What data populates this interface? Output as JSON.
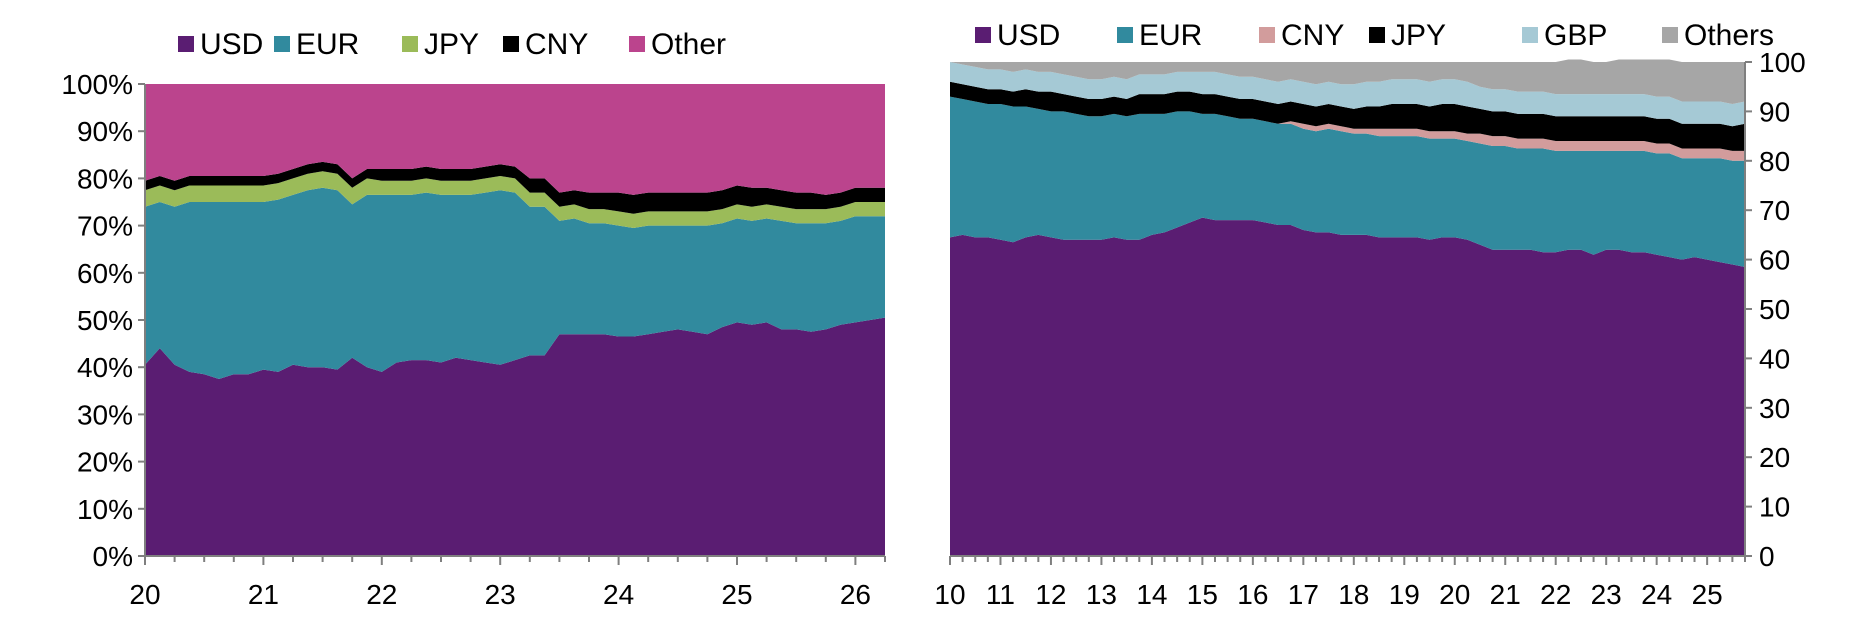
{
  "chart_data": [
    {
      "type": "area",
      "stacked": true,
      "x_ticks": [
        "20",
        "21",
        "22",
        "23",
        "24",
        "25",
        "26"
      ],
      "y_ticks": [
        "0%",
        "10%",
        "20%",
        "30%",
        "40%",
        "50%",
        "60%",
        "70%",
        "80%",
        "90%",
        "100%"
      ],
      "xlim": [
        20,
        26.25
      ],
      "ylim": [
        0,
        100
      ],
      "grid": false,
      "legend_position": "top",
      "y_axis_side": "left",
      "x": [
        20.0,
        20.125,
        20.25,
        20.375,
        20.5,
        20.625,
        20.75,
        20.875,
        21.0,
        21.125,
        21.25,
        21.375,
        21.5,
        21.625,
        21.75,
        21.875,
        22.0,
        22.125,
        22.25,
        22.375,
        22.5,
        22.625,
        22.75,
        22.875,
        23.0,
        23.125,
        23.25,
        23.375,
        23.5,
        23.625,
        23.75,
        23.875,
        24.0,
        24.125,
        24.25,
        24.375,
        24.5,
        24.625,
        24.75,
        24.875,
        25.0,
        25.125,
        25.25,
        25.375,
        25.5,
        25.625,
        25.75,
        25.875,
        26.0,
        26.125,
        26.25
      ],
      "series": [
        {
          "name": "USD",
          "color": "#5a1d72",
          "values": [
            40.5,
            44,
            40.5,
            39,
            38.5,
            37.5,
            38.5,
            38.5,
            39.5,
            39,
            40.5,
            40,
            40,
            39.5,
            42,
            40,
            39,
            41,
            41.5,
            41.5,
            41,
            42,
            41.5,
            41,
            40.5,
            41.5,
            42.5,
            42.5,
            47,
            47,
            47,
            47,
            46.5,
            46.5,
            47,
            47.5,
            48,
            47.5,
            47,
            48.5,
            49.5,
            49,
            49.5,
            48,
            48,
            47.5,
            48,
            49,
            49.5,
            50,
            50.5
          ]
        },
        {
          "name": "EUR",
          "color": "#318a9e",
          "values": [
            33.5,
            31,
            33.5,
            36,
            36.5,
            37.5,
            36.5,
            36.5,
            35.5,
            36.5,
            36,
            37.5,
            38,
            38,
            32.5,
            36.5,
            37.5,
            35.5,
            35,
            35.5,
            35.5,
            34.5,
            35,
            36,
            37,
            35.5,
            31.5,
            31.5,
            24,
            24.5,
            23.5,
            23.5,
            23.5,
            23,
            23,
            22.5,
            22,
            22.5,
            23,
            22,
            22,
            22,
            22,
            23,
            22.5,
            23,
            22.5,
            22,
            22.5,
            22,
            21.5
          ]
        },
        {
          "name": "JPY",
          "color": "#9bbb59",
          "values": [
            3.5,
            3.5,
            3.5,
            3.5,
            3.5,
            3.5,
            3.5,
            3.5,
            3.5,
            3.5,
            3.5,
            3.5,
            3.5,
            3.5,
            3.5,
            3.5,
            3,
            3,
            3,
            3,
            3,
            3,
            3,
            3,
            3,
            3,
            3,
            3,
            3,
            3,
            3,
            3,
            3,
            3,
            3,
            3,
            3,
            3,
            3,
            3,
            3,
            3,
            3,
            3,
            3,
            3,
            3,
            3,
            3,
            3,
            3
          ]
        },
        {
          "name": "CNY",
          "color": "#000000",
          "values": [
            2,
            2,
            2,
            2,
            2,
            2,
            2,
            2,
            2,
            2,
            2,
            2,
            2,
            2,
            2,
            2,
            2.5,
            2.5,
            2.5,
            2.5,
            2.5,
            2.5,
            2.5,
            2.5,
            2.5,
            2.5,
            3,
            3,
            3,
            3,
            3.5,
            3.5,
            4,
            4,
            4,
            4,
            4,
            4,
            4,
            4,
            4,
            4,
            3.5,
            3.5,
            3.5,
            3.5,
            3,
            3,
            3,
            3,
            3
          ]
        },
        {
          "name": "Other",
          "color": "#bb448d",
          "values": [
            20.5,
            19.5,
            20.5,
            19.5,
            19.5,
            19.5,
            19.5,
            19.5,
            19.5,
            19,
            18,
            17,
            16.5,
            17,
            20,
            18,
            18,
            18,
            18,
            17.5,
            18,
            18,
            18,
            17.5,
            17,
            17.5,
            20,
            20,
            23,
            22.5,
            23,
            23,
            23,
            23.5,
            23,
            23,
            23,
            23,
            23,
            22.5,
            21.5,
            22,
            22,
            22.5,
            23,
            23,
            23.5,
            23,
            22,
            22,
            22
          ]
        }
      ]
    },
    {
      "type": "area",
      "stacked": true,
      "x_ticks": [
        "10",
        "11",
        "12",
        "13",
        "14",
        "15",
        "16",
        "17",
        "18",
        "19",
        "20",
        "21",
        "22",
        "23",
        "24",
        "25"
      ],
      "y_ticks": [
        "0",
        "10",
        "20",
        "30",
        "40",
        "50",
        "60",
        "70",
        "80",
        "90",
        "100"
      ],
      "xlim": [
        10,
        25.75
      ],
      "ylim": [
        0,
        100
      ],
      "grid": false,
      "legend_position": "top",
      "y_axis_side": "right",
      "x": [
        10.0,
        10.25,
        10.5,
        10.75,
        11.0,
        11.25,
        11.5,
        11.75,
        12.0,
        12.25,
        12.5,
        12.75,
        13.0,
        13.25,
        13.5,
        13.75,
        14.0,
        14.25,
        14.5,
        14.75,
        15.0,
        15.25,
        15.5,
        15.75,
        16.0,
        16.25,
        16.5,
        16.75,
        17.0,
        17.25,
        17.5,
        17.75,
        18.0,
        18.25,
        18.5,
        18.75,
        19.0,
        19.25,
        19.5,
        19.75,
        20.0,
        20.25,
        20.5,
        20.75,
        21.0,
        21.25,
        21.5,
        21.75,
        22.0,
        22.25,
        22.5,
        22.75,
        23.0,
        23.25,
        23.5,
        23.75,
        24.0,
        24.25,
        24.5,
        24.75,
        25.0,
        25.25,
        25.5,
        25.75
      ],
      "series": [
        {
          "name": "USD",
          "color": "#5a1d72",
          "values": [
            64.5,
            65,
            64.5,
            64.5,
            64,
            63.5,
            64.5,
            65,
            64.5,
            64,
            64,
            64,
            64,
            64.5,
            64,
            64,
            65,
            65.5,
            66.5,
            67.5,
            68.5,
            68,
            68,
            68,
            68,
            67.5,
            67,
            67,
            66,
            65.5,
            65.5,
            65,
            65,
            65,
            64.5,
            64.5,
            64.5,
            64.5,
            64,
            64.5,
            64.5,
            64,
            63,
            62,
            62,
            62,
            62,
            61.5,
            61.5,
            62,
            62,
            61,
            62,
            62,
            61.5,
            61.5,
            61,
            60.5,
            60,
            60.5,
            60,
            59.5,
            59,
            58.5
          ]
        },
        {
          "name": "EUR",
          "color": "#318a9e",
          "values": [
            28.5,
            27.5,
            27.5,
            27,
            27.5,
            27.5,
            26.5,
            25.5,
            25.5,
            26,
            25.5,
            25,
            25,
            25,
            25,
            25.5,
            24.5,
            24,
            23.5,
            22.5,
            21,
            21.5,
            21,
            20.5,
            20.5,
            20.5,
            20.5,
            20.5,
            20.5,
            20.5,
            21,
            21,
            20.5,
            20.5,
            20.5,
            20.5,
            20.5,
            20.5,
            20.5,
            20,
            20,
            20,
            20.5,
            21,
            21,
            20.5,
            20.5,
            21,
            20.5,
            20,
            20,
            21,
            20,
            20,
            20.5,
            20.5,
            20.5,
            21,
            20.5,
            20,
            20.5,
            21,
            21,
            21.5
          ]
        },
        {
          "name": "CNY",
          "color": "#d29c9c",
          "values": [
            0,
            0,
            0,
            0,
            0,
            0,
            0,
            0,
            0,
            0,
            0,
            0,
            0,
            0,
            0,
            0,
            0,
            0,
            0,
            0,
            0,
            0,
            0,
            0,
            0,
            0,
            0,
            0.5,
            1.0,
            1.0,
            1.0,
            1.0,
            1.0,
            1.0,
            1.5,
            1.5,
            1.5,
            1.5,
            1.5,
            1.5,
            1.5,
            1.5,
            2.0,
            2.0,
            2.0,
            2.0,
            2.0,
            2.0,
            2.0,
            2.0,
            2.0,
            2.0,
            2.0,
            2.0,
            2.0,
            2.0,
            2.0,
            2.0,
            2.0,
            2.0,
            2.0,
            2.0,
            2.0,
            2.0
          ]
        },
        {
          "name": "JPY",
          "color": "#000000",
          "values": [
            3.0,
            3.0,
            3.0,
            3.0,
            3.0,
            3.0,
            3.5,
            3.5,
            4.0,
            3.5,
            3.5,
            3.5,
            3.5,
            3.5,
            3.5,
            4.0,
            4.0,
            4.0,
            4.0,
            4.0,
            4.0,
            4.0,
            4.0,
            4.0,
            4.0,
            4.0,
            4.0,
            4.0,
            4.0,
            4.0,
            4.0,
            4.0,
            4.0,
            4.5,
            4.5,
            5.0,
            5.0,
            5.0,
            5.0,
            5.5,
            5.5,
            5.5,
            5.0,
            5.0,
            5.0,
            5.0,
            5.0,
            5.0,
            5.0,
            5.0,
            5.0,
            5.0,
            5.0,
            5.0,
            5.0,
            5.0,
            5.0,
            5.0,
            5.0,
            5.0,
            5.0,
            5.0,
            5.0,
            5.5
          ]
        },
        {
          "name": "GBP",
          "color": "#a5c9d5",
          "values": [
            4.0,
            4.0,
            4.0,
            4.0,
            4.0,
            4.0,
            4.0,
            4.0,
            4.0,
            4.0,
            4.0,
            4.0,
            4.0,
            4.0,
            4.0,
            4.0,
            4.0,
            4.0,
            4.0,
            4.0,
            4.5,
            4.5,
            4.5,
            4.5,
            4.5,
            4.5,
            4.5,
            4.5,
            4.5,
            4.5,
            4.5,
            4.5,
            5.0,
            5.0,
            5.0,
            5.0,
            5.0,
            5.0,
            5.0,
            5.0,
            5.0,
            5.0,
            4.5,
            4.5,
            4.5,
            4.5,
            4.5,
            4.5,
            4.5,
            4.5,
            4.5,
            4.5,
            4.5,
            4.5,
            4.5,
            4.5,
            4.5,
            4.5,
            4.5,
            4.5,
            4.5,
            4.5,
            4.5,
            4.5
          ]
        },
        {
          "name": "Others",
          "color": "#a6a6a6",
          "values": [
            0,
            0.5,
            1.0,
            1.5,
            1.5,
            2.0,
            1.5,
            2.0,
            2.0,
            2.5,
            3.0,
            3.5,
            3.5,
            3.0,
            3.5,
            2.5,
            2.5,
            2.5,
            2.0,
            2.0,
            2.0,
            2.0,
            2.5,
            3.0,
            3.0,
            3.5,
            4.0,
            3.5,
            4.0,
            4.5,
            4.0,
            4.5,
            4.5,
            4.0,
            4.0,
            3.5,
            3.5,
            3.5,
            4.0,
            3.5,
            3.5,
            4.0,
            5.0,
            5.5,
            5.5,
            6.0,
            6.0,
            6.0,
            6.5,
            7.0,
            7.0,
            6.5,
            6.5,
            7.0,
            7.0,
            7.0,
            7.5,
            7.5,
            8.0,
            8.0,
            8.0,
            8.0,
            8.5,
            8.0
          ]
        }
      ]
    }
  ]
}
